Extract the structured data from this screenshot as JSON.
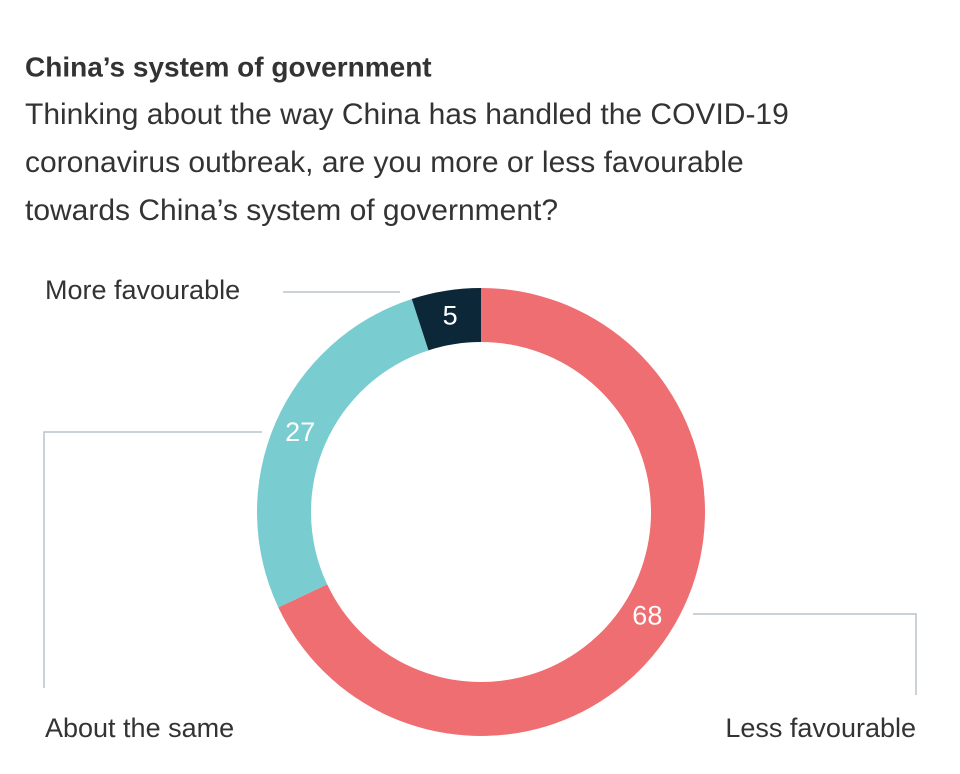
{
  "chart_data": {
    "type": "donut",
    "title": "China’s system of government",
    "subtitle": [
      "Thinking about the way China has handled the COVID-19",
      "coronavirus outbreak, are you more or less favourable",
      "towards China’s system of government?"
    ],
    "categories": [
      "Less favourable",
      "About the same",
      "More favourable"
    ],
    "values": [
      68,
      27,
      5
    ],
    "colors": [
      "#ef6e71",
      "#79cdd0",
      "#0c2838"
    ]
  }
}
